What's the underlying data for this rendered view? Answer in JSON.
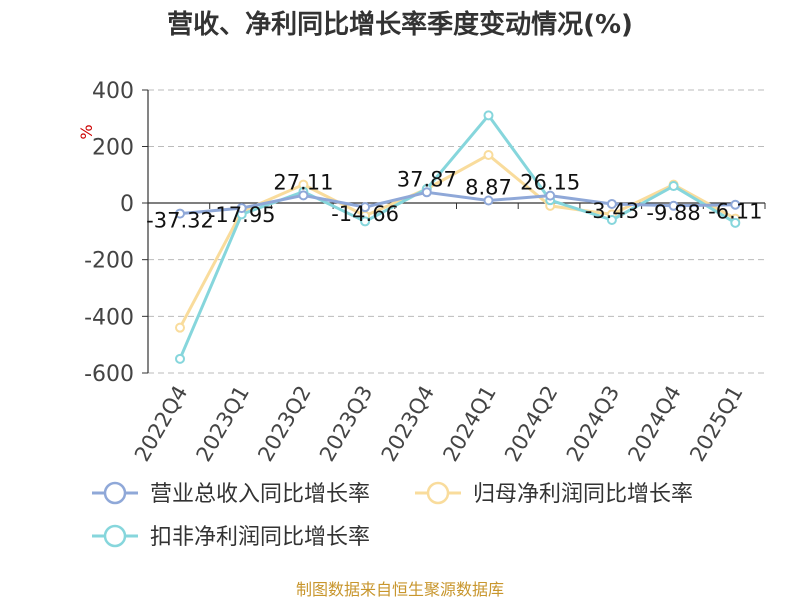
{
  "chart_data": {
    "type": "line",
    "title": "营收、净利同比增长率季度变动情况(%)",
    "ylabel": "%",
    "xlabel": "",
    "ylim": [
      -600,
      400
    ],
    "yticks": [
      400,
      200,
      0,
      -200,
      -400,
      -600
    ],
    "grid": true,
    "legend_position": "bottom",
    "categories": [
      "2022Q4",
      "2023Q1",
      "2023Q2",
      "2023Q3",
      "2023Q4",
      "2024Q1",
      "2024Q2",
      "2024Q3",
      "2024Q4",
      "2025Q1"
    ],
    "series": [
      {
        "name": "营业总收入同比增长率",
        "color": "#8fa8d8",
        "values": [
          -37.32,
          -17.95,
          27.11,
          -14.66,
          37.87,
          8.87,
          26.15,
          -3.43,
          -9.88,
          -6.11
        ],
        "labels": [
          "-37.32",
          "-17.95",
          "27.11",
          "-14.66",
          "37.87",
          "8.87",
          "26.15",
          "-3.43",
          "-9.88",
          "-6.11"
        ]
      },
      {
        "name": "归母净利润同比增长率",
        "color": "#f9dc9c",
        "values": [
          -440,
          -30,
          65,
          -45,
          50,
          170,
          -10,
          -40,
          65,
          -55
        ]
      },
      {
        "name": "扣非净利润同比增长率",
        "color": "#86d6dc",
        "values": [
          -550,
          -40,
          40,
          -65,
          50,
          310,
          10,
          -60,
          60,
          -70
        ]
      }
    ]
  },
  "source_text": "制图数据来自恒生聚源数据库"
}
